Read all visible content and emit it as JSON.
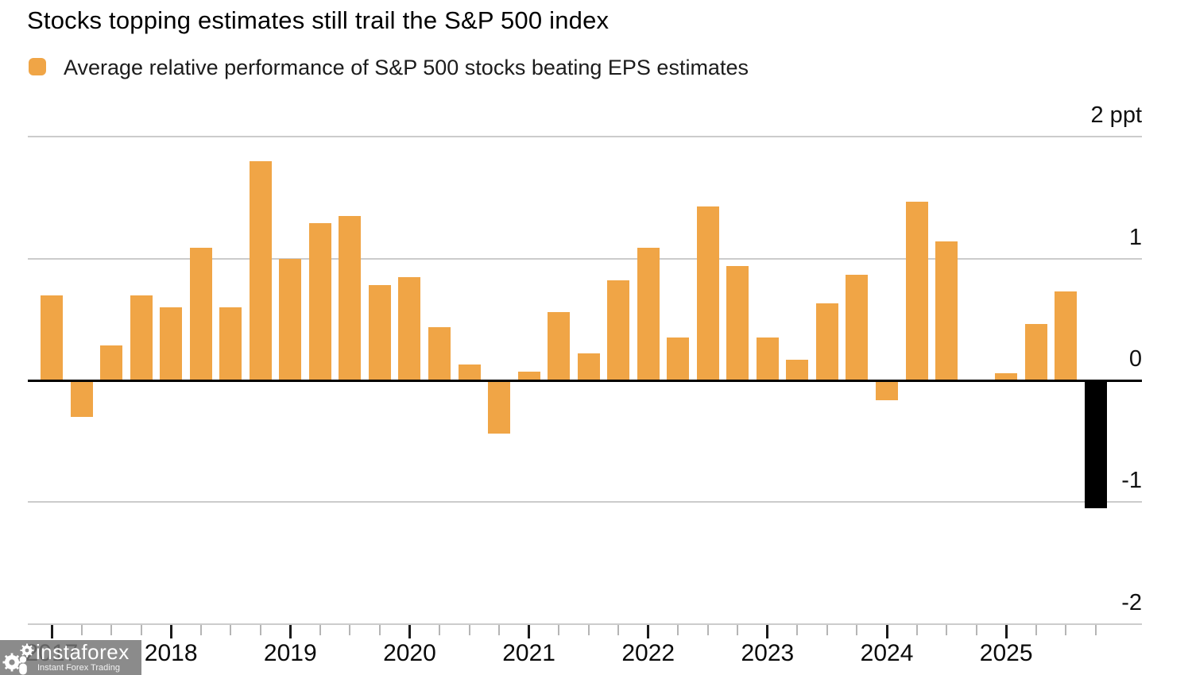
{
  "chart_data": {
    "type": "bar",
    "title": "Stocks topping estimates still trail the S&P 500 index",
    "legend": "Average relative performance of S&P 500 stocks beating EPS estimates",
    "unit": "ppt",
    "y_axis": {
      "position": "right",
      "range": [
        -2,
        2
      ],
      "grid": true,
      "ticks": [
        {
          "label": "2 ppt",
          "value": 2
        },
        {
          "label": "1",
          "value": 1
        },
        {
          "label": "0",
          "value": 0
        },
        {
          "label": "-1",
          "value": -1
        },
        {
          "label": "-2",
          "value": -2
        }
      ]
    },
    "x_axis": {
      "years": [
        "2017",
        "2018",
        "2019",
        "2020",
        "2021",
        "2022",
        "2023",
        "2024",
        "2025"
      ],
      "minor_ticks": "quarterly"
    },
    "series": [
      {
        "name": "Average relative performance of S&P 500 stocks beating EPS estimates",
        "color": "#F0A546",
        "points": [
          {
            "x": "2017 Q1",
            "value": 0.7
          },
          {
            "x": "2017 Q2",
            "value": -0.3
          },
          {
            "x": "2017 Q3",
            "value": 0.29
          },
          {
            "x": "2017 Q4",
            "value": 0.7
          },
          {
            "x": "2018 Q1",
            "value": 0.6
          },
          {
            "x": "2018 Q2",
            "value": 1.09
          },
          {
            "x": "2018 Q3",
            "value": 0.6
          },
          {
            "x": "2018 Q4",
            "value": 1.8
          },
          {
            "x": "2019 Q1",
            "value": 1.0
          },
          {
            "x": "2019 Q2",
            "value": 1.29
          },
          {
            "x": "2019 Q3",
            "value": 1.35
          },
          {
            "x": "2019 Q4",
            "value": 0.78
          },
          {
            "x": "2020 Q1",
            "value": 0.85
          },
          {
            "x": "2020 Q2",
            "value": 0.44
          },
          {
            "x": "2020 Q3",
            "value": 0.13
          },
          {
            "x": "2020 Q4",
            "value": -0.44
          },
          {
            "x": "2021 Q1",
            "value": 0.07
          },
          {
            "x": "2021 Q2",
            "value": 0.56
          },
          {
            "x": "2021 Q3",
            "value": 0.22
          },
          {
            "x": "2021 Q4",
            "value": 0.82
          },
          {
            "x": "2022 Q1",
            "value": 1.09
          },
          {
            "x": "2022 Q2",
            "value": 0.35
          },
          {
            "x": "2022 Q3",
            "value": 1.43
          },
          {
            "x": "2022 Q4",
            "value": 0.94
          },
          {
            "x": "2023 Q1",
            "value": 0.35
          },
          {
            "x": "2023 Q2",
            "value": 0.17
          },
          {
            "x": "2023 Q3",
            "value": 0.63
          },
          {
            "x": "2023 Q4",
            "value": 0.87
          },
          {
            "x": "2024 Q1",
            "value": -0.16
          },
          {
            "x": "2024 Q2",
            "value": 1.47
          },
          {
            "x": "2024 Q3",
            "value": 1.14
          },
          {
            "x": "2024 Q4",
            "value": 0.0
          },
          {
            "x": "2025 Q1",
            "value": 0.06
          },
          {
            "x": "2025 Q2",
            "value": 0.46
          },
          {
            "x": "2025 Q3",
            "value": 0.73
          },
          {
            "x": "2025 Q4",
            "value": -1.05,
            "color": "#000000"
          }
        ]
      }
    ],
    "zero_line_color": "#000000",
    "grid_color": "#cccccc"
  },
  "watermark": {
    "brand": "instaforex",
    "tagline": "Instant Forex Trading"
  }
}
